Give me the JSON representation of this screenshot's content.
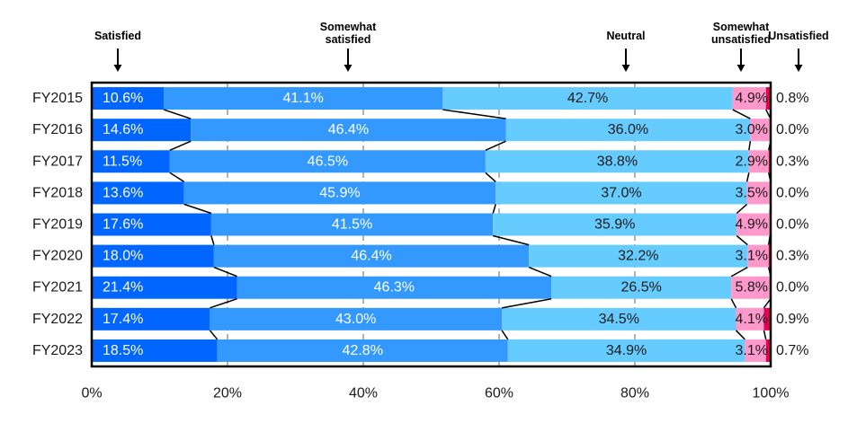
{
  "chart_data": {
    "type": "bar",
    "orientation": "horizontal",
    "stacked": true,
    "normalized": true,
    "categories": [
      "FY2015",
      "FY2016",
      "FY2017",
      "FY2018",
      "FY2019",
      "FY2020",
      "FY2021",
      "FY2022",
      "FY2023"
    ],
    "series": [
      {
        "name": "Satisfied",
        "color": "#0066ff",
        "values": [
          10.6,
          14.6,
          11.5,
          13.6,
          17.6,
          18.0,
          21.4,
          17.4,
          18.5
        ],
        "labels": [
          "10.6%",
          "14.6%",
          "11.5%",
          "13.6%",
          "17.6%",
          "18.0%",
          "21.4%",
          "17.4%",
          "18.5%"
        ]
      },
      {
        "name": "Somewhat satisfied",
        "color": "#3399ff",
        "values": [
          41.1,
          46.4,
          46.5,
          45.9,
          41.5,
          46.4,
          46.3,
          43.0,
          42.8
        ],
        "labels": [
          "41.1%",
          "46.4%",
          "46.5%",
          "45.9%",
          "41.5%",
          "46.4%",
          "46.3%",
          "43.0%",
          "42.8%"
        ]
      },
      {
        "name": "Neutral",
        "color": "#66ccff",
        "values": [
          42.7,
          36.0,
          38.8,
          37.0,
          35.9,
          32.2,
          26.5,
          34.5,
          34.9
        ],
        "labels": [
          "42.7%",
          "36.0%",
          "38.8%",
          "37.0%",
          "35.9%",
          "32.2%",
          "26.5%",
          "34.5%",
          "34.9%"
        ]
      },
      {
        "name": "Somewhat unsatisfied",
        "color": "#ff99cc",
        "values": [
          4.9,
          3.0,
          2.9,
          3.5,
          4.9,
          3.1,
          5.8,
          4.1,
          3.1
        ],
        "labels": [
          "4.9%",
          "3.0%",
          "2.9%",
          "3.5%",
          "4.9%",
          "3.1%",
          "5.8%",
          "4.1%",
          "3.1%"
        ]
      },
      {
        "name": "Unsatisfied",
        "color": "#e8005a",
        "values": [
          0.8,
          0.0,
          0.3,
          0.0,
          0.0,
          0.3,
          0.0,
          0.9,
          0.7
        ],
        "labels": [
          "0.8%",
          "0.0%",
          "0.3%",
          "0.0%",
          "0.0%",
          "0.3%",
          "0.0%",
          "0.9%",
          "0.7%"
        ]
      }
    ],
    "legend": [
      {
        "lines": [
          "Satisfied"
        ]
      },
      {
        "lines": [
          "Somewhat",
          "satisfied"
        ]
      },
      {
        "lines": [
          "Neutral"
        ]
      },
      {
        "lines": [
          "Somewhat",
          "unsatisfied"
        ]
      },
      {
        "lines": [
          "Unsatisfied"
        ]
      }
    ],
    "legend_placement": "top",
    "x_ticks": [
      "0%",
      "20%",
      "40%",
      "60%",
      "80%",
      "100%"
    ],
    "xlim": [
      0,
      100
    ],
    "grid": true,
    "series_lines": true,
    "title": "",
    "xlabel": "",
    "ylabel": ""
  }
}
